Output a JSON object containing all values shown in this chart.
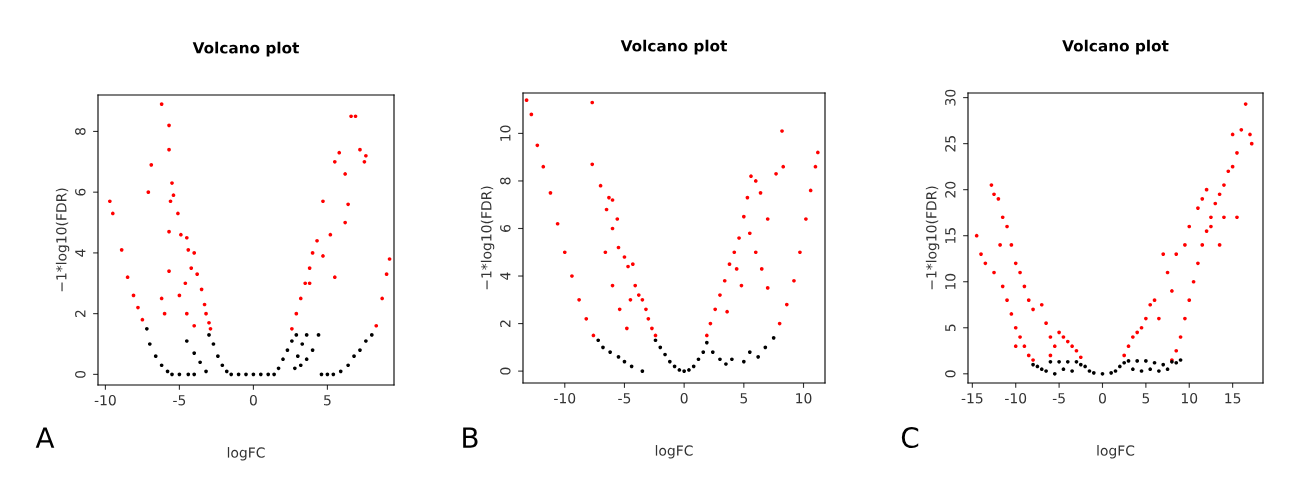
{
  "chart_data": [
    {
      "type": "scatter",
      "title": "Volcano plot",
      "xlabel": "logFC",
      "ylabel": "−1*log10(FDR)",
      "annotations": [
        "A"
      ],
      "xlim": [
        -10.5,
        9.5
      ],
      "ylim": [
        -0.35,
        9.2
      ],
      "xticks": [
        -10,
        -5,
        0,
        5
      ],
      "yticks": [
        0,
        2,
        4,
        6,
        8
      ],
      "grid": false,
      "legend": false,
      "marker": "circle",
      "series": [
        {
          "color": "#ff0000",
          "x": [
            -9.7,
            -9.5,
            -8.9,
            -8.5,
            -8.1,
            -7.8,
            -7.5,
            -6.2,
            -6.9,
            -7.1,
            -5.7,
            -5.7,
            -5.5,
            -5.4,
            -5.6,
            -5.1,
            -5.7,
            -4.9,
            -4.5,
            -4.4,
            -4.0,
            -4.2,
            -3.8,
            -4.6,
            -3.5,
            -3.3,
            -3.2,
            -3.0,
            -2.9,
            -5.7,
            -5.0,
            -4.5,
            -4.0,
            -6.2,
            -6.0,
            2.6,
            2.9,
            3.2,
            3.5,
            3.8,
            4.0,
            4.3,
            4.7,
            5.2,
            5.5,
            5.8,
            6.2,
            6.6,
            6.9,
            7.2,
            7.5,
            7.6,
            6.4,
            6.2,
            5.5,
            4.7,
            3.8,
            8.3,
            8.7,
            9.0,
            9.2
          ],
          "values": [
            5.7,
            5.3,
            4.1,
            3.2,
            2.6,
            2.2,
            1.8,
            8.9,
            6.9,
            6.0,
            8.2,
            7.4,
            6.3,
            5.9,
            5.7,
            5.3,
            4.7,
            4.6,
            4.5,
            4.1,
            4.0,
            3.5,
            3.3,
            3.0,
            2.8,
            2.3,
            2.0,
            1.7,
            1.5,
            3.4,
            2.6,
            2.0,
            1.6,
            2.5,
            2.0,
            1.5,
            2.0,
            2.5,
            3.0,
            3.5,
            4.0,
            4.4,
            3.9,
            4.6,
            7.0,
            7.3,
            6.6,
            8.5,
            8.5,
            7.4,
            7.0,
            7.2,
            5.6,
            5.0,
            3.2,
            5.7,
            3.0,
            1.6,
            2.5,
            3.3,
            3.8
          ]
        },
        {
          "color": "#000000",
          "x": [
            -7.2,
            -7.0,
            -6.6,
            -6.2,
            -5.8,
            -5.5,
            -5.0,
            -4.4,
            -4.0,
            -4.5,
            -4.0,
            -3.6,
            -3.2,
            -3.0,
            -2.7,
            -2.4,
            -2.1,
            -1.8,
            -1.5,
            -1.0,
            -0.5,
            0,
            0.5,
            1.0,
            1.4,
            1.7,
            2.0,
            2.3,
            2.6,
            2.9,
            3.0,
            3.3,
            3.6,
            2.8,
            3.2,
            3.6,
            4.0,
            4.4,
            4.6,
            5.0,
            5.4,
            5.9,
            6.4,
            6.8,
            7.2,
            7.6,
            8.0
          ],
          "values": [
            1.5,
            1.0,
            0.6,
            0.3,
            0.1,
            0,
            0,
            0,
            0,
            1.1,
            0.7,
            0.4,
            0.1,
            1.3,
            1.0,
            0.6,
            0.3,
            0.1,
            0,
            0,
            0,
            0,
            0,
            0,
            0,
            0.2,
            0.5,
            0.8,
            1.1,
            1.3,
            0.6,
            1.0,
            1.3,
            0.2,
            0.3,
            0.5,
            0.8,
            1.3,
            0,
            0,
            0,
            0.1,
            0.3,
            0.6,
            0.8,
            1.1,
            1.3
          ]
        }
      ]
    },
    {
      "type": "scatter",
      "title": "Volcano plot",
      "xlabel": "logFC",
      "ylabel": "−1*log10(FDR)",
      "annotations": [
        "B"
      ],
      "xlim": [
        -13.5,
        11.8
      ],
      "ylim": [
        -0.5,
        11.7
      ],
      "xticks": [
        -10,
        -5,
        0,
        5,
        10
      ],
      "yticks": [
        0,
        2,
        4,
        6,
        8,
        10
      ],
      "grid": false,
      "legend": false,
      "marker": "circle",
      "series": [
        {
          "color": "#ff0000",
          "x": [
            -13.2,
            -12.8,
            -12.3,
            -11.8,
            -11.2,
            -10.6,
            -10.0,
            -9.4,
            -8.8,
            -8.2,
            -7.6,
            -7.7,
            -7.7,
            -7.0,
            -6.3,
            -6.5,
            -6.0,
            -5.6,
            -6.0,
            -5.5,
            -5.0,
            -4.7,
            -4.3,
            -4.1,
            -3.8,
            -3.5,
            -3.2,
            -3.0,
            -2.7,
            -2.4,
            -6.6,
            -6.0,
            -5.4,
            -4.8,
            -4.5,
            1.9,
            2.2,
            2.6,
            3.0,
            3.4,
            3.8,
            4.2,
            4.6,
            5.0,
            5.3,
            5.6,
            6.0,
            6.4,
            7.0,
            7.7,
            8.3,
            8.2,
            5.5,
            6.0,
            6.5,
            7.0,
            4.8,
            4.4,
            3.6,
            8.0,
            8.6,
            9.2,
            9.7,
            10.2,
            10.6,
            11.0,
            11.2
          ],
          "values": [
            11.4,
            10.8,
            9.5,
            8.6,
            7.5,
            6.2,
            5.0,
            4.0,
            3.0,
            2.2,
            1.5,
            11.3,
            8.7,
            7.8,
            7.3,
            6.8,
            7.2,
            6.4,
            6.0,
            5.2,
            4.8,
            4.4,
            4.5,
            3.6,
            3.2,
            3.0,
            2.6,
            2.2,
            1.8,
            1.5,
            5.0,
            3.6,
            2.6,
            1.8,
            3.0,
            1.5,
            2.0,
            2.6,
            3.2,
            3.8,
            4.5,
            5.0,
            5.6,
            6.5,
            7.3,
            8.2,
            8.0,
            7.5,
            6.4,
            8.3,
            8.6,
            10.1,
            5.8,
            5.0,
            4.3,
            3.5,
            3.6,
            4.3,
            2.5,
            2.0,
            2.8,
            3.8,
            5.0,
            6.4,
            7.6,
            8.6,
            9.2
          ]
        },
        {
          "color": "#000000",
          "x": [
            -7.2,
            -6.8,
            -6.2,
            -5.5,
            -5.0,
            -4.4,
            -3.5,
            -2.4,
            -2.0,
            -1.6,
            -1.2,
            -0.8,
            -0.4,
            0,
            0.4,
            0.8,
            1.2,
            1.6,
            1.9,
            2.4,
            3.0,
            3.5,
            4.0,
            5.0,
            5.5,
            6.2,
            6.8,
            7.5
          ],
          "values": [
            1.3,
            1.0,
            0.8,
            0.6,
            0.4,
            0.2,
            0.0,
            1.3,
            1.0,
            0.7,
            0.4,
            0.2,
            0.05,
            0,
            0.05,
            0.2,
            0.5,
            0.8,
            1.2,
            0.8,
            0.5,
            0.3,
            0.5,
            0.4,
            0.8,
            0.6,
            1.0,
            1.4
          ]
        }
      ]
    },
    {
      "type": "scatter",
      "title": "Volcano plot",
      "xlabel": "logFC",
      "ylabel": "−1*log10(FDR)",
      "annotations": [
        "C"
      ],
      "xlim": [
        -15.5,
        18.5
      ],
      "ylim": [
        -1,
        30.5
      ],
      "xticks": [
        -15,
        -10,
        -5,
        0,
        5,
        10,
        15
      ],
      "yticks": [
        0,
        5,
        10,
        15,
        20,
        25,
        30
      ],
      "grid": false,
      "legend": false,
      "marker": "circle",
      "series": [
        {
          "color": "#ff0000",
          "x": [
            -14.5,
            -14,
            -13.5,
            -12.8,
            -12.5,
            -12,
            -11.5,
            -11,
            -11.8,
            -12.5,
            -11.5,
            -11,
            -10.5,
            -10,
            -9.5,
            -9,
            -8.5,
            -8,
            -10.5,
            -10,
            -9.5,
            -9,
            -8.5,
            -8,
            -7,
            -6.5,
            -6,
            -5.5,
            -5,
            -4.5,
            -4,
            -3.5,
            -3,
            -2.5,
            -6,
            -10,
            2.5,
            3,
            3.5,
            4,
            4.5,
            5,
            5.5,
            6,
            6.5,
            7,
            7.5,
            8,
            8.5,
            8,
            8.5,
            9,
            9.5,
            10,
            10.5,
            11,
            11.5,
            12,
            12.5,
            13,
            13.5,
            14,
            14.5,
            15,
            15.5,
            16,
            16.5,
            17,
            17.2,
            11,
            11.5,
            12,
            12.5,
            10,
            9.5,
            14,
            15,
            15.5,
            13.5
          ],
          "values": [
            15,
            13,
            12,
            20.5,
            19.5,
            19,
            17,
            16,
            14,
            11,
            9.5,
            8,
            6.5,
            5,
            4,
            3,
            2,
            1.5,
            14,
            12,
            11,
            9.5,
            8,
            7,
            7.5,
            5.5,
            4,
            3,
            4.5,
            4,
            3.5,
            3,
            2.5,
            1.8,
            2,
            3,
            2,
            3,
            4,
            4.5,
            5,
            6,
            7.5,
            8,
            6,
            13,
            11,
            9,
            13,
            1.5,
            2.5,
            4,
            6,
            8,
            10,
            12,
            14,
            15.5,
            17,
            18.5,
            19.5,
            20.5,
            22,
            22.5,
            24,
            26.5,
            29.3,
            26,
            25,
            18,
            19,
            20,
            16,
            16,
            14,
            17,
            26,
            17,
            14
          ]
        },
        {
          "color": "#000000",
          "x": [
            -8,
            -7.5,
            -7,
            -6.5,
            -6,
            -5.5,
            -5,
            -4.5,
            -4,
            -3.5,
            -3,
            -2.5,
            -2,
            -1.5,
            -1,
            0,
            1,
            1.5,
            2,
            2.5,
            3,
            3.5,
            4,
            4.5,
            5,
            5.5,
            6,
            6.5,
            7,
            7.5,
            8,
            8.5,
            9
          ],
          "values": [
            1,
            0.8,
            0.5,
            0.3,
            1.3,
            0,
            1.3,
            0.5,
            1.3,
            0.3,
            1.3,
            1,
            0.8,
            0.3,
            0.1,
            0,
            0.1,
            0.3,
            0.8,
            1.2,
            1.4,
            0.5,
            1.4,
            0.3,
            1.4,
            0.5,
            1.2,
            0.3,
            1,
            0.5,
            1.3,
            1.2,
            1.5
          ]
        }
      ]
    }
  ]
}
